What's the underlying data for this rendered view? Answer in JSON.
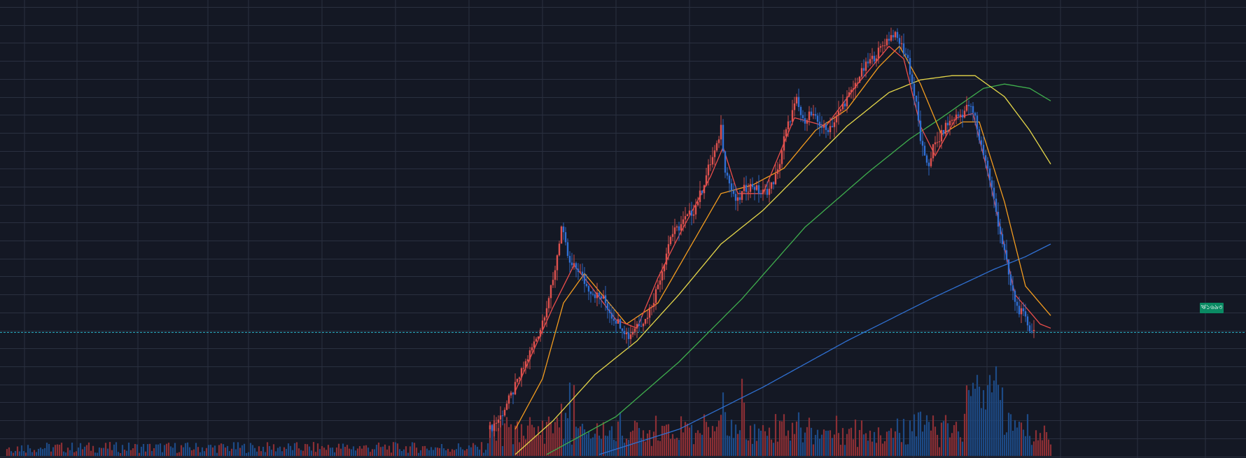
{
  "chart_data": {
    "type": "line",
    "title": "",
    "xlabel": "",
    "ylabel": "",
    "grid": true,
    "legend": "none",
    "base_index": 0,
    "candle_count": 260,
    "ylim": [
      0,
      100
    ],
    "price_closes": [
      [
        0,
        6
      ],
      [
        5,
        9
      ],
      [
        11,
        15
      ],
      [
        18,
        23
      ],
      [
        24,
        30
      ],
      [
        30,
        41
      ],
      [
        34,
        54
      ],
      [
        38,
        45
      ],
      [
        42,
        44
      ],
      [
        46,
        40
      ],
      [
        50,
        38
      ],
      [
        54,
        37
      ],
      [
        58,
        33
      ],
      [
        62,
        31
      ],
      [
        66,
        28
      ],
      [
        70,
        31
      ],
      [
        74,
        32
      ],
      [
        78,
        37
      ],
      [
        82,
        44
      ],
      [
        86,
        52
      ],
      [
        90,
        54
      ],
      [
        93,
        56
      ],
      [
        97,
        58
      ],
      [
        101,
        63
      ],
      [
        104,
        68
      ],
      [
        108,
        73
      ],
      [
        110,
        78
      ],
      [
        112,
        68
      ],
      [
        116,
        61
      ],
      [
        118,
        60
      ],
      [
        121,
        63
      ],
      [
        125,
        64
      ],
      [
        129,
        62
      ],
      [
        133,
        63
      ],
      [
        137,
        67
      ],
      [
        140,
        75
      ],
      [
        143,
        80
      ],
      [
        146,
        84
      ],
      [
        149,
        79
      ],
      [
        152,
        81
      ],
      [
        156,
        79
      ],
      [
        160,
        77
      ],
      [
        164,
        79
      ],
      [
        168,
        83
      ],
      [
        172,
        86
      ],
      [
        176,
        90
      ],
      [
        180,
        93
      ],
      [
        184,
        95
      ],
      [
        188,
        98
      ],
      [
        192,
        100
      ],
      [
        195,
        98
      ],
      [
        197,
        96
      ],
      [
        199,
        94
      ],
      [
        201,
        88
      ],
      [
        203,
        83
      ],
      [
        205,
        75
      ],
      [
        207,
        70
      ],
      [
        209,
        69
      ],
      [
        211,
        73
      ],
      [
        213,
        74
      ],
      [
        217,
        78
      ],
      [
        221,
        80
      ],
      [
        225,
        81
      ],
      [
        228,
        83
      ],
      [
        231,
        80
      ],
      [
        233,
        75
      ],
      [
        236,
        70
      ],
      [
        239,
        63
      ],
      [
        242,
        55
      ],
      [
        245,
        48
      ],
      [
        248,
        40
      ],
      [
        251,
        35
      ],
      [
        254,
        33
      ],
      [
        257,
        30
      ],
      [
        260,
        29
      ],
      [
        263,
        31
      ],
      [
        265,
        29
      ],
      [
        267,
        30
      ]
    ],
    "ma_short": [
      [
        12,
        15
      ],
      [
        30,
        35
      ],
      [
        40,
        45
      ],
      [
        48,
        40
      ],
      [
        60,
        32
      ],
      [
        70,
        30
      ],
      [
        80,
        42
      ],
      [
        90,
        52
      ],
      [
        105,
        66
      ],
      [
        111,
        73
      ],
      [
        118,
        62
      ],
      [
        130,
        62
      ],
      [
        145,
        80
      ],
      [
        160,
        78
      ],
      [
        175,
        88
      ],
      [
        190,
        97
      ],
      [
        197,
        94
      ],
      [
        205,
        78
      ],
      [
        212,
        71
      ],
      [
        222,
        80
      ],
      [
        230,
        81
      ],
      [
        238,
        65
      ],
      [
        250,
        38
      ],
      [
        262,
        31
      ],
      [
        267,
        30
      ]
    ],
    "ma_mid": [
      [
        12,
        6
      ],
      [
        25,
        18
      ],
      [
        35,
        36
      ],
      [
        45,
        43
      ],
      [
        55,
        37
      ],
      [
        65,
        31
      ],
      [
        80,
        36
      ],
      [
        95,
        49
      ],
      [
        110,
        62
      ],
      [
        125,
        64
      ],
      [
        140,
        68
      ],
      [
        155,
        77
      ],
      [
        170,
        82
      ],
      [
        185,
        92
      ],
      [
        195,
        97
      ],
      [
        205,
        88
      ],
      [
        215,
        76
      ],
      [
        225,
        79
      ],
      [
        233,
        79
      ],
      [
        245,
        60
      ],
      [
        255,
        40
      ],
      [
        267,
        33
      ]
    ],
    "ma_long": [
      [
        12,
        0
      ],
      [
        30,
        8
      ],
      [
        50,
        19
      ],
      [
        70,
        27
      ],
      [
        90,
        38
      ],
      [
        110,
        50
      ],
      [
        130,
        58
      ],
      [
        150,
        68
      ],
      [
        170,
        78
      ],
      [
        190,
        86
      ],
      [
        205,
        89
      ],
      [
        220,
        90
      ],
      [
        231,
        90
      ],
      [
        245,
        85
      ],
      [
        257,
        77
      ],
      [
        267,
        69
      ]
    ],
    "ma_longer": [
      [
        27,
        0
      ],
      [
        60,
        9
      ],
      [
        90,
        22
      ],
      [
        120,
        37
      ],
      [
        150,
        54
      ],
      [
        180,
        67
      ],
      [
        200,
        75
      ],
      [
        215,
        80
      ],
      [
        235,
        87
      ],
      [
        245,
        88
      ],
      [
        257,
        87
      ],
      [
        267,
        84
      ]
    ],
    "ma_longest": [
      [
        52,
        0
      ],
      [
        90,
        6
      ],
      [
        130,
        16
      ],
      [
        170,
        27
      ],
      [
        210,
        37
      ],
      [
        240,
        44
      ],
      [
        255,
        47
      ],
      [
        267,
        50
      ]
    ],
    "current_price_level": 29,
    "current_price_label": "ঋ১৬৯৩"
  },
  "colors": {
    "background": "#141824",
    "grid": "#2a3040",
    "up": "#e0524f",
    "down": "#2f6ed3",
    "up_volume": "#8b2f35",
    "down_volume": "#1d4a86",
    "ma_short": "#ea4d4a",
    "ma_mid": "#f39c1f",
    "ma_long": "#e6d84a",
    "ma_longer": "#3fae4d",
    "ma_longest": "#2f6fd0",
    "price_line": "#2ab3c9",
    "price_tag": "#0a8a63"
  }
}
